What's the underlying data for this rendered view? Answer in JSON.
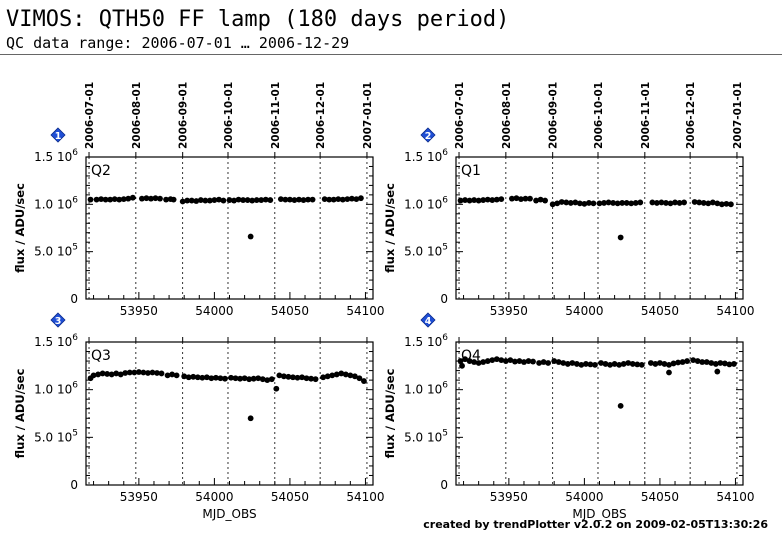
{
  "header": {
    "title": "VIMOS: QTH50 FF lamp (180 days period)",
    "subtitle": "QC data range: 2006-07-01 … 2006-12-29"
  },
  "footer": {
    "credit": "created by trendPlotter v2.0.2 on 2009-02-05T13:30:26"
  },
  "chart_data": [
    {
      "type": "scatter",
      "panel_id": "1",
      "label": "Q2",
      "ylabel": "flux / ADU/sec",
      "xlabel": "",
      "xlim": [
        53915,
        54105
      ],
      "ylim": [
        0,
        1500000
      ],
      "xticks": [
        53950,
        54000,
        54050,
        54100
      ],
      "date_ticks": [
        {
          "mjd": 53917,
          "label": "2006-07-01"
        },
        {
          "mjd": 53948,
          "label": "2006-08-01"
        },
        {
          "mjd": 53979,
          "label": "2006-09-01"
        },
        {
          "mjd": 54009,
          "label": "2006-10-01"
        },
        {
          "mjd": 54040,
          "label": "2006-11-01"
        },
        {
          "mjd": 54070,
          "label": "2006-12-01"
        },
        {
          "mjd": 54101,
          "label": "2007-01-01"
        }
      ],
      "yticks": [
        {
          "v": 0,
          "base": "0",
          "exp": ""
        },
        {
          "v": 500000,
          "base": "5.0 10",
          "exp": "5"
        },
        {
          "v": 1000000,
          "base": "1.0 10",
          "exp": "6"
        },
        {
          "v": 1500000,
          "base": "1.5 10",
          "exp": "6"
        }
      ],
      "points": [
        [
          53918,
          1050000
        ],
        [
          53922,
          1050000
        ],
        [
          53925,
          1055000
        ],
        [
          53928,
          1050000
        ],
        [
          53931,
          1050000
        ],
        [
          53934,
          1055000
        ],
        [
          53937,
          1050000
        ],
        [
          53940,
          1055000
        ],
        [
          53943,
          1060000
        ],
        [
          53946,
          1070000
        ],
        [
          53952,
          1060000
        ],
        [
          53955,
          1065000
        ],
        [
          53958,
          1060000
        ],
        [
          53961,
          1065000
        ],
        [
          53964,
          1060000
        ],
        [
          53968,
          1050000
        ],
        [
          53971,
          1055000
        ],
        [
          53973,
          1050000
        ],
        [
          53979,
          1030000
        ],
        [
          53982,
          1040000
        ],
        [
          53985,
          1040000
        ],
        [
          53988,
          1035000
        ],
        [
          53991,
          1045000
        ],
        [
          53994,
          1040000
        ],
        [
          53997,
          1040000
        ],
        [
          54000,
          1045000
        ],
        [
          54003,
          1050000
        ],
        [
          54006,
          1040000
        ],
        [
          54010,
          1045000
        ],
        [
          54013,
          1040000
        ],
        [
          54016,
          1050000
        ],
        [
          54019,
          1045000
        ],
        [
          54022,
          1045000
        ],
        [
          54025,
          1040000
        ],
        [
          54028,
          1045000
        ],
        [
          54031,
          1045000
        ],
        [
          54034,
          1050000
        ],
        [
          54037,
          1045000
        ],
        [
          54044,
          1055000
        ],
        [
          54047,
          1050000
        ],
        [
          54050,
          1050000
        ],
        [
          54053,
          1045000
        ],
        [
          54056,
          1050000
        ],
        [
          54059,
          1045000
        ],
        [
          54062,
          1050000
        ],
        [
          54065,
          1050000
        ],
        [
          54073,
          1055000
        ],
        [
          54076,
          1050000
        ],
        [
          54079,
          1050000
        ],
        [
          54082,
          1055000
        ],
        [
          54085,
          1050000
        ],
        [
          54088,
          1055000
        ],
        [
          54091,
          1060000
        ],
        [
          54094,
          1055000
        ],
        [
          54097,
          1065000
        ],
        [
          54024,
          660000
        ]
      ]
    },
    {
      "type": "scatter",
      "panel_id": "2",
      "label": "Q1",
      "ylabel": "flux / ADU/sec",
      "xlabel": "",
      "xlim": [
        53915,
        54105
      ],
      "ylim": [
        0,
        1500000
      ],
      "xticks": [
        53950,
        54000,
        54050,
        54100
      ],
      "date_ticks": [
        {
          "mjd": 53917,
          "label": "2006-07-01"
        },
        {
          "mjd": 53948,
          "label": "2006-08-01"
        },
        {
          "mjd": 53979,
          "label": "2006-09-01"
        },
        {
          "mjd": 54009,
          "label": "2006-10-01"
        },
        {
          "mjd": 54040,
          "label": "2006-11-01"
        },
        {
          "mjd": 54070,
          "label": "2006-12-01"
        },
        {
          "mjd": 54101,
          "label": "2007-01-01"
        }
      ],
      "yticks": [
        {
          "v": 0,
          "base": "0",
          "exp": ""
        },
        {
          "v": 500000,
          "base": "5.0 10",
          "exp": "5"
        },
        {
          "v": 1000000,
          "base": "1.0 10",
          "exp": "6"
        },
        {
          "v": 1500000,
          "base": "1.5 10",
          "exp": "6"
        }
      ],
      "points": [
        [
          53918,
          1040000
        ],
        [
          53921,
          1045000
        ],
        [
          53924,
          1040000
        ],
        [
          53927,
          1045000
        ],
        [
          53930,
          1040000
        ],
        [
          53933,
          1045000
        ],
        [
          53936,
          1050000
        ],
        [
          53939,
          1045000
        ],
        [
          53942,
          1050000
        ],
        [
          53945,
          1055000
        ],
        [
          53952,
          1060000
        ],
        [
          53955,
          1065000
        ],
        [
          53958,
          1055000
        ],
        [
          53961,
          1060000
        ],
        [
          53964,
          1060000
        ],
        [
          53968,
          1040000
        ],
        [
          53971,
          1050000
        ],
        [
          53974,
          1040000
        ],
        [
          53979,
          1000000
        ],
        [
          53982,
          1010000
        ],
        [
          53985,
          1025000
        ],
        [
          53988,
          1020000
        ],
        [
          53991,
          1015000
        ],
        [
          53994,
          1020000
        ],
        [
          53997,
          1010000
        ],
        [
          54000,
          1005000
        ],
        [
          54003,
          1015000
        ],
        [
          54006,
          1010000
        ],
        [
          54010,
          1010000
        ],
        [
          54013,
          1015000
        ],
        [
          54016,
          1020000
        ],
        [
          54019,
          1015000
        ],
        [
          54022,
          1010000
        ],
        [
          54025,
          1015000
        ],
        [
          54028,
          1015000
        ],
        [
          54031,
          1010000
        ],
        [
          54034,
          1015000
        ],
        [
          54037,
          1020000
        ],
        [
          54045,
          1020000
        ],
        [
          54048,
          1015000
        ],
        [
          54051,
          1020000
        ],
        [
          54054,
          1015000
        ],
        [
          54057,
          1010000
        ],
        [
          54060,
          1020000
        ],
        [
          54063,
          1015000
        ],
        [
          54066,
          1020000
        ],
        [
          54073,
          1025000
        ],
        [
          54076,
          1020000
        ],
        [
          54079,
          1015000
        ],
        [
          54082,
          1010000
        ],
        [
          54085,
          1020000
        ],
        [
          54088,
          1010000
        ],
        [
          54091,
          1000000
        ],
        [
          54094,
          1005000
        ],
        [
          54097,
          1000000
        ],
        [
          54024,
          650000
        ]
      ]
    },
    {
      "type": "scatter",
      "panel_id": "3",
      "label": "Q3",
      "ylabel": "flux / ADU/sec",
      "xlabel": "MJD_OBS",
      "xlim": [
        53915,
        54105
      ],
      "ylim": [
        0,
        1500000
      ],
      "xticks": [
        53950,
        54000,
        54050,
        54100
      ],
      "date_ticks": [
        {
          "mjd": 53917,
          "label": ""
        },
        {
          "mjd": 53948,
          "label": ""
        },
        {
          "mjd": 53979,
          "label": ""
        },
        {
          "mjd": 54009,
          "label": ""
        },
        {
          "mjd": 54040,
          "label": ""
        },
        {
          "mjd": 54070,
          "label": ""
        },
        {
          "mjd": 54101,
          "label": ""
        }
      ],
      "yticks": [
        {
          "v": 0,
          "base": "0",
          "exp": ""
        },
        {
          "v": 500000,
          "base": "5.0 10",
          "exp": "5"
        },
        {
          "v": 1000000,
          "base": "1.0 10",
          "exp": "6"
        },
        {
          "v": 1500000,
          "base": "1.5 10",
          "exp": "6"
        }
      ],
      "points": [
        [
          53918,
          1120000
        ],
        [
          53920,
          1150000
        ],
        [
          53923,
          1160000
        ],
        [
          53926,
          1170000
        ],
        [
          53929,
          1165000
        ],
        [
          53932,
          1160000
        ],
        [
          53935,
          1170000
        ],
        [
          53938,
          1160000
        ],
        [
          53941,
          1175000
        ],
        [
          53944,
          1180000
        ],
        [
          53947,
          1180000
        ],
        [
          53950,
          1185000
        ],
        [
          53953,
          1180000
        ],
        [
          53956,
          1175000
        ],
        [
          53959,
          1180000
        ],
        [
          53962,
          1175000
        ],
        [
          53965,
          1170000
        ],
        [
          53969,
          1150000
        ],
        [
          53972,
          1160000
        ],
        [
          53975,
          1150000
        ],
        [
          53980,
          1140000
        ],
        [
          53983,
          1130000
        ],
        [
          53986,
          1135000
        ],
        [
          53989,
          1130000
        ],
        [
          53992,
          1125000
        ],
        [
          53995,
          1130000
        ],
        [
          53998,
          1120000
        ],
        [
          54001,
          1125000
        ],
        [
          54004,
          1120000
        ],
        [
          54007,
          1115000
        ],
        [
          54011,
          1125000
        ],
        [
          54014,
          1120000
        ],
        [
          54017,
          1115000
        ],
        [
          54020,
          1120000
        ],
        [
          54023,
          1110000
        ],
        [
          54026,
          1115000
        ],
        [
          54029,
          1120000
        ],
        [
          54032,
          1110000
        ],
        [
          54035,
          1100000
        ],
        [
          54038,
          1110000
        ],
        [
          54043,
          1150000
        ],
        [
          54046,
          1140000
        ],
        [
          54049,
          1135000
        ],
        [
          54052,
          1130000
        ],
        [
          54055,
          1125000
        ],
        [
          54058,
          1130000
        ],
        [
          54061,
          1120000
        ],
        [
          54064,
          1115000
        ],
        [
          54067,
          1110000
        ],
        [
          54072,
          1130000
        ],
        [
          54075,
          1140000
        ],
        [
          54078,
          1150000
        ],
        [
          54081,
          1160000
        ],
        [
          54084,
          1170000
        ],
        [
          54087,
          1160000
        ],
        [
          54090,
          1150000
        ],
        [
          54093,
          1140000
        ],
        [
          54096,
          1120000
        ],
        [
          54099,
          1090000
        ],
        [
          54024,
          700000
        ],
        [
          54041,
          1010000
        ]
      ]
    },
    {
      "type": "scatter",
      "panel_id": "4",
      "label": "Q4",
      "ylabel": "flux / ADU/sec",
      "xlabel": "MJD_OBS",
      "xlim": [
        53915,
        54105
      ],
      "ylim": [
        0,
        1500000
      ],
      "xticks": [
        53950,
        54000,
        54050,
        54100
      ],
      "date_ticks": [
        {
          "mjd": 53917,
          "label": ""
        },
        {
          "mjd": 53948,
          "label": ""
        },
        {
          "mjd": 53979,
          "label": ""
        },
        {
          "mjd": 54009,
          "label": ""
        },
        {
          "mjd": 54040,
          "label": ""
        },
        {
          "mjd": 54070,
          "label": ""
        },
        {
          "mjd": 54101,
          "label": ""
        }
      ],
      "yticks": [
        {
          "v": 0,
          "base": "0",
          "exp": ""
        },
        {
          "v": 500000,
          "base": "5.0 10",
          "exp": "5"
        },
        {
          "v": 1000000,
          "base": "1.0 10",
          "exp": "6"
        },
        {
          "v": 1500000,
          "base": "1.5 10",
          "exp": "6"
        }
      ],
      "points": [
        [
          53918,
          1300000
        ],
        [
          53919,
          1250000
        ],
        [
          53921,
          1320000
        ],
        [
          53924,
          1300000
        ],
        [
          53927,
          1290000
        ],
        [
          53930,
          1280000
        ],
        [
          53933,
          1290000
        ],
        [
          53936,
          1300000
        ],
        [
          53939,
          1310000
        ],
        [
          53942,
          1320000
        ],
        [
          53945,
          1310000
        ],
        [
          53948,
          1300000
        ],
        [
          53951,
          1310000
        ],
        [
          53954,
          1295000
        ],
        [
          53957,
          1300000
        ],
        [
          53960,
          1290000
        ],
        [
          53963,
          1300000
        ],
        [
          53966,
          1295000
        ],
        [
          53970,
          1280000
        ],
        [
          53973,
          1290000
        ],
        [
          53976,
          1280000
        ],
        [
          53980,
          1300000
        ],
        [
          53983,
          1290000
        ],
        [
          53986,
          1280000
        ],
        [
          53989,
          1270000
        ],
        [
          53992,
          1280000
        ],
        [
          53995,
          1270000
        ],
        [
          53998,
          1260000
        ],
        [
          54001,
          1270000
        ],
        [
          54004,
          1265000
        ],
        [
          54007,
          1260000
        ],
        [
          54011,
          1280000
        ],
        [
          54014,
          1270000
        ],
        [
          54017,
          1260000
        ],
        [
          54020,
          1270000
        ],
        [
          54023,
          1260000
        ],
        [
          54026,
          1270000
        ],
        [
          54029,
          1280000
        ],
        [
          54032,
          1270000
        ],
        [
          54035,
          1265000
        ],
        [
          54038,
          1260000
        ],
        [
          54044,
          1280000
        ],
        [
          54047,
          1270000
        ],
        [
          54050,
          1280000
        ],
        [
          54053,
          1270000
        ],
        [
          54056,
          1260000
        ],
        [
          54059,
          1275000
        ],
        [
          54062,
          1285000
        ],
        [
          54065,
          1290000
        ],
        [
          54068,
          1300000
        ],
        [
          54072,
          1310000
        ],
        [
          54075,
          1300000
        ],
        [
          54078,
          1290000
        ],
        [
          54081,
          1290000
        ],
        [
          54084,
          1280000
        ],
        [
          54087,
          1270000
        ],
        [
          54090,
          1280000
        ],
        [
          54093,
          1275000
        ],
        [
          54096,
          1265000
        ],
        [
          54099,
          1270000
        ],
        [
          54024,
          830000
        ],
        [
          54056,
          1180000
        ],
        [
          54088,
          1190000
        ]
      ]
    }
  ]
}
